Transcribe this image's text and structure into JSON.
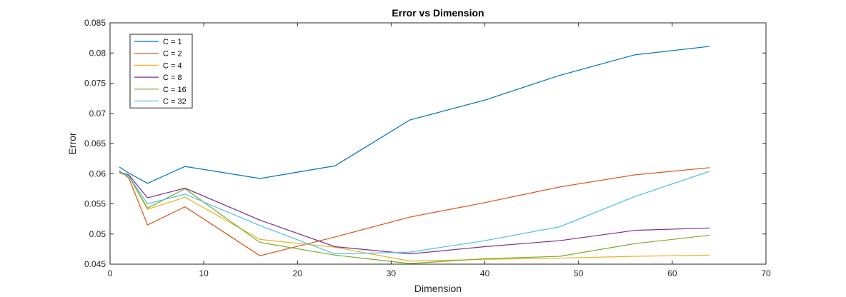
{
  "chart_data": {
    "type": "line",
    "title": "Error vs Dimension",
    "xlabel": "Dimension",
    "ylabel": "Error",
    "xlim": [
      0,
      70
    ],
    "ylim": [
      0.045,
      0.085
    ],
    "xticks": [
      "0",
      "10",
      "20",
      "30",
      "40",
      "50",
      "60",
      "70"
    ],
    "yticks": [
      "0.045",
      "0.05",
      "0.055",
      "0.06",
      "0.065",
      "0.07",
      "0.075",
      "0.08",
      "0.085"
    ],
    "x": [
      1,
      2,
      4,
      8,
      16,
      24,
      32,
      40,
      48,
      56,
      64
    ],
    "grid": false,
    "legend_position": "top-left",
    "series": [
      {
        "name": "C = 1",
        "color": "#0072BD",
        "values": [
          0.0611,
          0.0601,
          0.0584,
          0.0612,
          0.0592,
          0.0613,
          0.0689,
          0.0722,
          0.0763,
          0.0797,
          0.0811
        ]
      },
      {
        "name": "C = 2",
        "color": "#D95319",
        "values": [
          0.0605,
          0.0593,
          0.0515,
          0.0545,
          0.0464,
          0.0495,
          0.0528,
          0.0552,
          0.0578,
          0.0598,
          0.061
        ]
      },
      {
        "name": "C = 4",
        "color": "#EDB120",
        "values": [
          0.0601,
          0.0596,
          0.0541,
          0.0561,
          0.0491,
          0.0478,
          0.0455,
          0.0458,
          0.046,
          0.0463,
          0.0465
        ]
      },
      {
        "name": "C = 8",
        "color": "#7E2F8E",
        "values": [
          0.0603,
          0.0598,
          0.056,
          0.0576,
          0.0523,
          0.0479,
          0.0467,
          0.0479,
          0.0489,
          0.0506,
          0.051
        ]
      },
      {
        "name": "C = 16",
        "color": "#77AC30",
        "values": [
          0.0602,
          0.0596,
          0.0543,
          0.0575,
          0.0486,
          0.0465,
          0.0451,
          0.0459,
          0.0463,
          0.0484,
          0.0498
        ]
      },
      {
        "name": "C = 32",
        "color": "#4DBEEE",
        "values": [
          0.0604,
          0.0596,
          0.055,
          0.0566,
          0.0514,
          0.0467,
          0.047,
          0.0489,
          0.0512,
          0.0562,
          0.0604
        ]
      }
    ]
  }
}
